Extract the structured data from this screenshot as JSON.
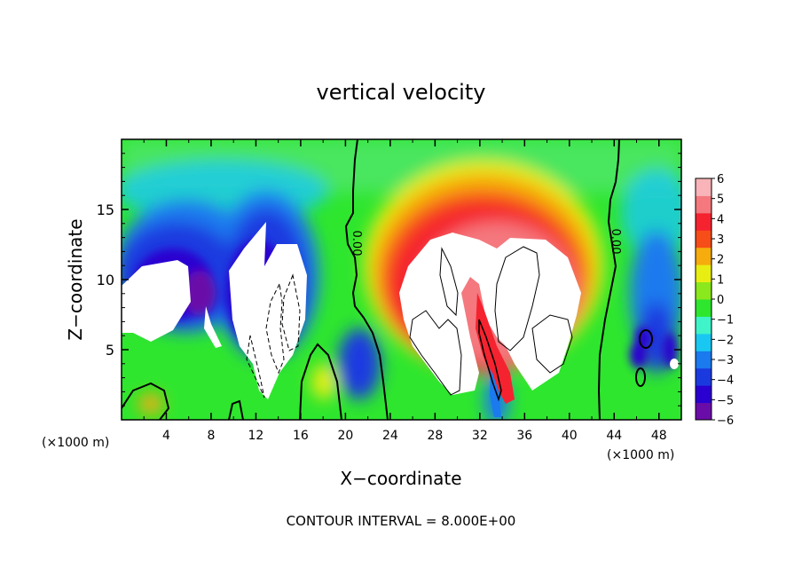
{
  "chart_data": {
    "type": "heatmap",
    "title": "vertical velocity",
    "xlabel": "X−coordinate",
    "ylabel": "Z−coordinate",
    "x_unit_left": "(×1000 m)",
    "x_unit_right": "(×1000 m)",
    "xlim": [
      0,
      50
    ],
    "ylim": [
      0,
      20
    ],
    "x_ticks": [
      4,
      8,
      12,
      16,
      20,
      24,
      28,
      32,
      36,
      40,
      44,
      48
    ],
    "y_ticks": [
      5,
      10,
      15
    ],
    "colorbar": {
      "range": [
        -6,
        6
      ],
      "ticks": [
        6,
        5,
        4,
        3,
        2,
        1,
        0,
        -1,
        -2,
        -3,
        -4,
        -5,
        -6
      ],
      "tick_labels": [
        "6",
        "5",
        "4",
        "3",
        "2",
        "1",
        "0",
        "−1",
        "−2",
        "−3",
        "−4",
        "−5",
        "−6"
      ],
      "colors": [
        "#6a0da8",
        "#2a00d0",
        "#1a3ae0",
        "#1a7aee",
        "#19c8f2",
        "#3ef4c8",
        "#2ee62e",
        "#8ae81c",
        "#e8ee12",
        "#f5ac0c",
        "#f74d18",
        "#f5232f",
        "#f4787e",
        "#f8b4b8"
      ]
    },
    "contour_label": "0.00",
    "footer": "CONTOUR INTERVAL = 8.000E+00"
  }
}
